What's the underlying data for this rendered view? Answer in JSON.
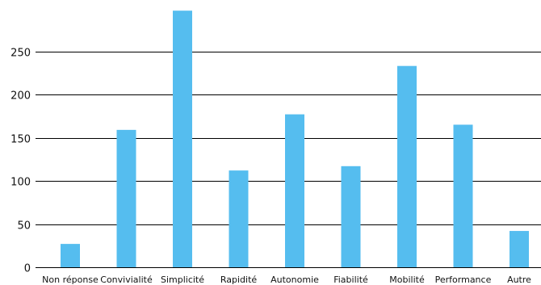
{
  "chart_data": {
    "type": "bar",
    "title": "",
    "xlabel": "",
    "ylabel": "",
    "categories": [
      "Non réponse",
      "Convivialité",
      "Simplicité",
      "Rapidité",
      "Autonomie",
      "Fiabilité",
      "Mobilité",
      "Performance",
      "Autre"
    ],
    "values": [
      27,
      159,
      297,
      112,
      177,
      117,
      233,
      165,
      42
    ],
    "ylim": [
      0,
      300
    ],
    "yticks": [
      0,
      50,
      100,
      150,
      200,
      250
    ],
    "grid": true,
    "legend": "none",
    "colors": {
      "bar": "#55bdef",
      "grid": "#000000",
      "axis": "#000000",
      "text": "#111111"
    }
  }
}
